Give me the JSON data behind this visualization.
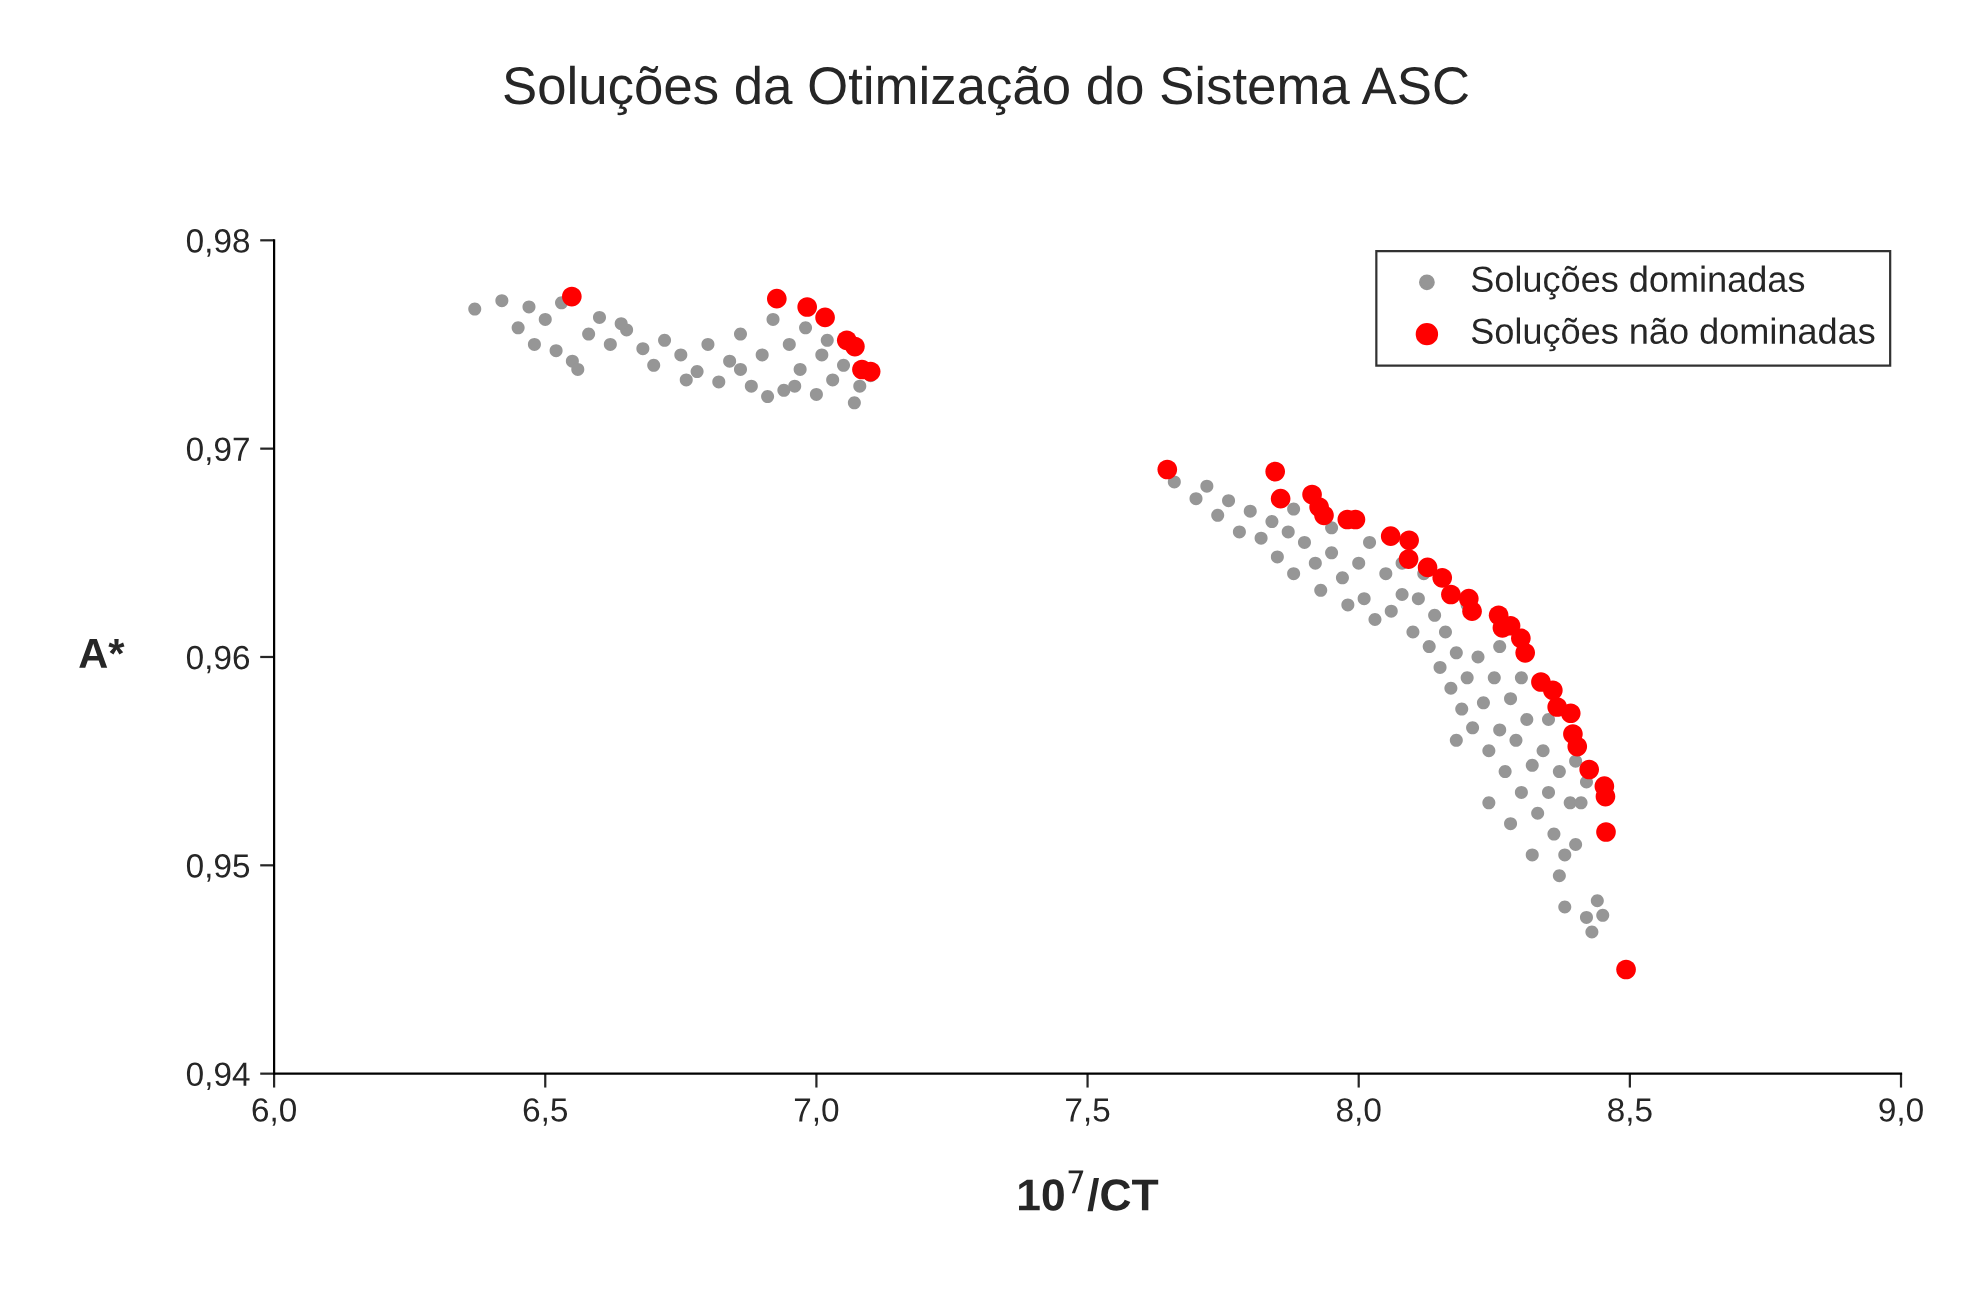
{
  "chart_data": {
    "type": "scatter",
    "title": "Soluções da Otimização do Sistema ASC",
    "xlabel": "10$^{7}$/CT",
    "ylabel": "A*",
    "xlim": [
      6.0,
      9.0
    ],
    "xticks": [
      {
        "value": 6.0,
        "label": "6,0"
      },
      {
        "value": 6.5,
        "label": "6,5"
      },
      {
        "value": 7.0,
        "label": "7,0"
      },
      {
        "value": 7.5,
        "label": "7,5"
      },
      {
        "value": 8.0,
        "label": "8,0"
      },
      {
        "value": 8.5,
        "label": "8,5"
      },
      {
        "value": 9.0,
        "label": "9,0"
      }
    ],
    "ylim": [
      0.94,
      0.98
    ],
    "yticks": [
      {
        "value": 0.94,
        "label": "0,94"
      },
      {
        "value": 0.95,
        "label": "0,95"
      },
      {
        "value": 0.96,
        "label": "0,96"
      },
      {
        "value": 0.97,
        "label": "0,97"
      },
      {
        "value": 0.98,
        "label": "0,98"
      }
    ],
    "grid": false,
    "legend": "top right",
    "marker": "circle",
    "series": [
      {
        "name": "Soluções dominadas",
        "color": "#969696",
        "x": [
          6.37,
          6.42,
          6.47,
          6.5,
          6.45,
          6.48,
          6.52,
          6.55,
          6.58,
          6.6,
          6.62,
          6.65,
          6.68,
          6.7,
          6.72,
          6.75,
          6.78,
          6.8,
          6.82,
          6.84,
          6.86,
          6.88,
          6.9,
          6.92,
          6.94,
          6.95,
          6.97,
          6.98,
          7.0,
          7.01,
          7.03,
          7.05,
          7.07,
          7.08,
          7.1,
          6.76,
          6.86,
          6.91,
          6.96,
          7.02,
          6.53,
          6.64,
          6.56,
          7.66,
          7.7,
          7.72,
          7.74,
          7.76,
          7.78,
          7.8,
          7.82,
          7.84,
          7.85,
          7.87,
          7.88,
          7.9,
          7.92,
          7.93,
          7.95,
          7.97,
          7.98,
          8.0,
          8.01,
          8.03,
          8.05,
          8.06,
          8.08,
          8.1,
          8.11,
          8.13,
          8.14,
          8.15,
          8.16,
          8.17,
          8.18,
          8.19,
          8.2,
          8.21,
          8.22,
          8.23,
          8.24,
          8.25,
          8.26,
          8.27,
          8.28,
          8.29,
          8.3,
          8.31,
          8.32,
          8.33,
          8.34,
          8.35,
          8.36,
          8.37,
          8.38,
          8.39,
          8.37,
          8.4,
          8.41,
          8.38,
          8.42,
          8.43,
          8.44,
          8.45,
          8.08,
          8.12,
          8.2,
          8.26,
          7.95,
          7.88,
          8.02,
          8.3,
          8.35,
          8.4,
          8.42,
          8.18,
          8.24,
          8.28,
          8.32
        ],
        "values": [
          0.9767,
          0.9771,
          0.9768,
          0.9762,
          0.9758,
          0.975,
          0.9747,
          0.9742,
          0.9755,
          0.9763,
          0.975,
          0.9757,
          0.9748,
          0.974,
          0.9752,
          0.9745,
          0.9737,
          0.975,
          0.9732,
          0.9742,
          0.9755,
          0.973,
          0.9745,
          0.9762,
          0.9728,
          0.975,
          0.9738,
          0.9758,
          0.9726,
          0.9745,
          0.9733,
          0.974,
          0.9722,
          0.973,
          0.9735,
          0.9733,
          0.9738,
          0.9725,
          0.973,
          0.9752,
          0.977,
          0.976,
          0.9738,
          0.9684,
          0.9676,
          0.9682,
          0.9668,
          0.9675,
          0.966,
          0.967,
          0.9657,
          0.9665,
          0.9648,
          0.966,
          0.964,
          0.9655,
          0.9645,
          0.9632,
          0.965,
          0.9638,
          0.9625,
          0.9645,
          0.9628,
          0.9618,
          0.964,
          0.9622,
          0.963,
          0.9612,
          0.9628,
          0.9605,
          0.962,
          0.9595,
          0.9612,
          0.9585,
          0.9602,
          0.9575,
          0.959,
          0.9566,
          0.96,
          0.9578,
          0.9555,
          0.959,
          0.9565,
          0.9545,
          0.958,
          0.956,
          0.9535,
          0.957,
          0.9548,
          0.9525,
          0.9555,
          0.9535,
          0.9515,
          0.9545,
          0.9505,
          0.953,
          0.9495,
          0.951,
          0.953,
          0.948,
          0.9475,
          0.9468,
          0.9483,
          0.9476,
          0.9645,
          0.964,
          0.9625,
          0.9605,
          0.9662,
          0.9671,
          0.9655,
          0.959,
          0.957,
          0.955,
          0.954,
          0.956,
          0.953,
          0.952,
          0.9505
        ]
      },
      {
        "name": "Soluções não dominadas",
        "color": "#ff0000",
        "x": [
          6.549,
          6.927,
          6.983,
          7.016,
          7.056,
          7.071,
          7.084,
          7.1,
          7.647,
          7.846,
          7.856,
          7.914,
          7.927,
          7.936,
          7.979,
          7.994,
          8.059,
          8.093,
          8.092,
          8.127,
          8.154,
          8.17,
          8.203,
          8.209,
          8.258,
          8.265,
          8.28,
          8.299,
          8.307,
          8.336,
          8.358,
          8.366,
          8.391,
          8.395,
          8.403,
          8.425,
          8.453,
          8.455,
          8.456,
          8.493
        ],
        "values": [
          0.9773,
          0.9772,
          0.9768,
          0.9763,
          0.9752,
          0.9749,
          0.9738,
          0.9737,
          0.969,
          0.9689,
          0.9676,
          0.9678,
          0.9672,
          0.9668,
          0.9666,
          0.9666,
          0.9658,
          0.9656,
          0.9647,
          0.9643,
          0.9638,
          0.963,
          0.9628,
          0.9622,
          0.962,
          0.9614,
          0.9615,
          0.9609,
          0.9602,
          0.9588,
          0.9584,
          0.9576,
          0.9573,
          0.9563,
          0.9557,
          0.9546,
          0.9538,
          0.9533,
          0.9516,
          0.945
        ]
      }
    ]
  }
}
